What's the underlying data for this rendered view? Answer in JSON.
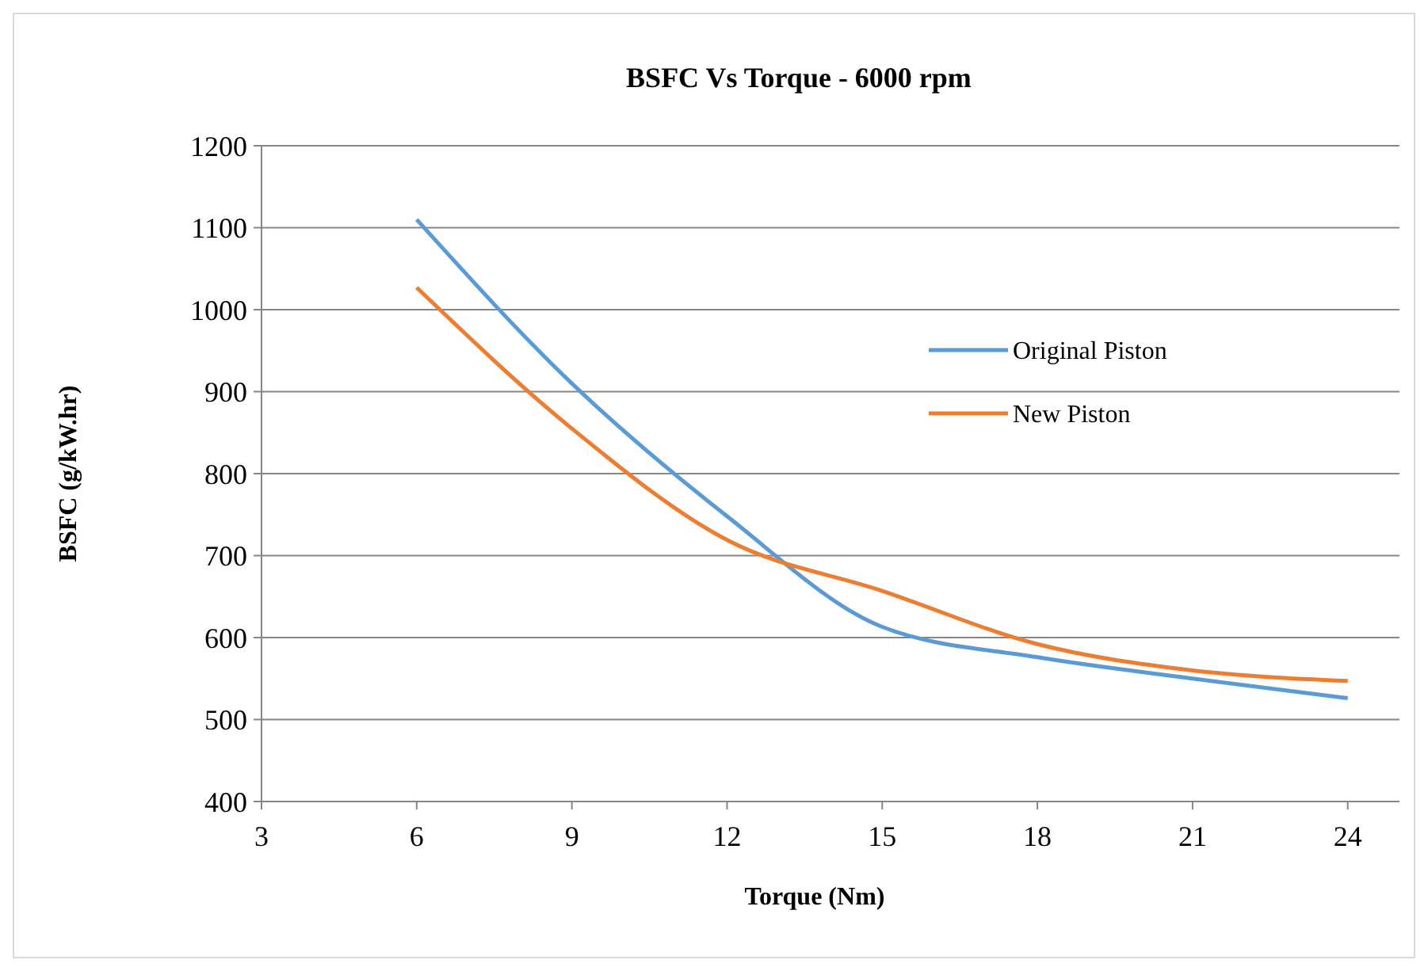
{
  "chart_data": {
    "type": "line",
    "title": "BSFC Vs Torque - 6000 rpm",
    "xlabel": "Torque (Nm)",
    "ylabel": "BSFC (g/kW.hr)",
    "x": [
      6,
      9,
      12,
      15,
      18,
      21,
      24
    ],
    "series": [
      {
        "name": "Original Piston",
        "color": "#5b9bd5",
        "values": [
          1110,
          910,
          748,
          613,
          576,
          550,
          526
        ]
      },
      {
        "name": "New Piston",
        "color": "#ed7d31",
        "values": [
          1027,
          855,
          719,
          657,
          592,
          560,
          547
        ]
      }
    ],
    "xlim": [
      3,
      25
    ],
    "xticks": [
      3,
      6,
      9,
      12,
      15,
      18,
      21,
      24
    ],
    "ylim": [
      400,
      1200
    ],
    "yticks": [
      400,
      500,
      600,
      700,
      800,
      900,
      1000,
      1100,
      1200
    ],
    "grid": "y",
    "legend": "top right",
    "marker": "none",
    "line_style": "solid"
  }
}
